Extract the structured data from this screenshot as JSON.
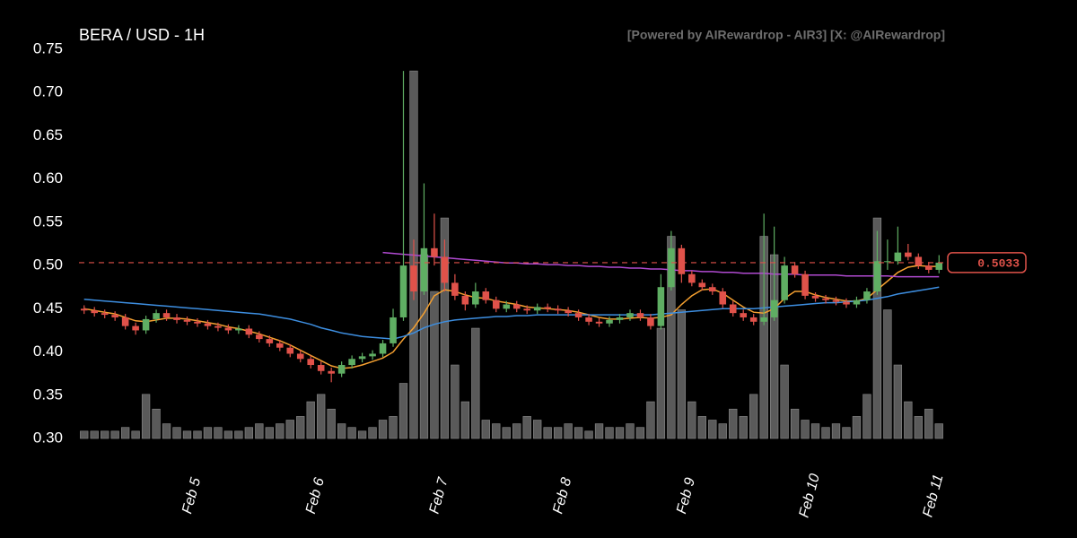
{
  "chart_data": {
    "type": "candlestick",
    "title": "BERA / USD - 1H",
    "subtitle": "[Powered by AIRewardrop - AIR3] [X: @AIRewardrop]",
    "categories": [
      null,
      null,
      null,
      null,
      null,
      null,
      null,
      null,
      null,
      null,
      null,
      "Feb 5",
      null,
      null,
      null,
      null,
      null,
      null,
      null,
      null,
      null,
      null,
      null,
      "Feb 6",
      null,
      null,
      null,
      null,
      null,
      null,
      null,
      null,
      null,
      null,
      null,
      "Feb 7",
      null,
      null,
      null,
      null,
      null,
      null,
      null,
      null,
      null,
      null,
      null,
      "Feb 8",
      null,
      null,
      null,
      null,
      null,
      null,
      null,
      null,
      null,
      null,
      null,
      "Feb 9",
      null,
      null,
      null,
      null,
      null,
      null,
      null,
      null,
      null,
      null,
      null,
      "Feb 10",
      null,
      null,
      null,
      null,
      null,
      null,
      null,
      null,
      null,
      null,
      null,
      "Feb 11"
    ],
    "ohlc": [
      [
        0.45,
        0.454,
        0.444,
        0.448
      ],
      [
        0.448,
        0.452,
        0.441,
        0.445
      ],
      [
        0.445,
        0.449,
        0.439,
        0.443
      ],
      [
        0.443,
        0.447,
        0.436,
        0.44
      ],
      [
        0.44,
        0.444,
        0.426,
        0.43
      ],
      [
        0.43,
        0.434,
        0.42,
        0.425
      ],
      [
        0.425,
        0.442,
        0.421,
        0.438
      ],
      [
        0.438,
        0.449,
        0.434,
        0.445
      ],
      [
        0.445,
        0.449,
        0.436,
        0.44
      ],
      [
        0.44,
        0.444,
        0.433,
        0.437
      ],
      [
        0.437,
        0.441,
        0.431,
        0.435
      ],
      [
        0.435,
        0.439,
        0.429,
        0.433
      ],
      [
        0.433,
        0.437,
        0.426,
        0.43
      ],
      [
        0.43,
        0.434,
        0.424,
        0.428
      ],
      [
        0.428,
        0.432,
        0.421,
        0.425
      ],
      [
        0.425,
        0.431,
        0.421,
        0.427
      ],
      [
        0.427,
        0.431,
        0.416,
        0.42
      ],
      [
        0.42,
        0.424,
        0.411,
        0.415
      ],
      [
        0.415,
        0.419,
        0.406,
        0.41
      ],
      [
        0.41,
        0.414,
        0.401,
        0.405
      ],
      [
        0.405,
        0.409,
        0.394,
        0.398
      ],
      [
        0.398,
        0.402,
        0.388,
        0.392
      ],
      [
        0.392,
        0.396,
        0.381,
        0.385
      ],
      [
        0.385,
        0.389,
        0.374,
        0.378
      ],
      [
        0.378,
        0.382,
        0.365,
        0.375
      ],
      [
        0.375,
        0.389,
        0.371,
        0.385
      ],
      [
        0.385,
        0.396,
        0.381,
        0.392
      ],
      [
        0.392,
        0.399,
        0.388,
        0.395
      ],
      [
        0.395,
        0.402,
        0.391,
        0.398
      ],
      [
        0.398,
        0.414,
        0.394,
        0.41
      ],
      [
        0.41,
        0.45,
        0.406,
        0.44
      ],
      [
        0.44,
        0.725,
        0.436,
        0.5
      ],
      [
        0.5,
        0.53,
        0.46,
        0.47
      ],
      [
        0.47,
        0.595,
        0.466,
        0.52
      ],
      [
        0.52,
        0.56,
        0.5,
        0.51
      ],
      [
        0.51,
        0.53,
        0.47,
        0.48
      ],
      [
        0.48,
        0.49,
        0.46,
        0.465
      ],
      [
        0.465,
        0.47,
        0.448,
        0.455
      ],
      [
        0.455,
        0.48,
        0.451,
        0.47
      ],
      [
        0.47,
        0.474,
        0.456,
        0.46
      ],
      [
        0.46,
        0.464,
        0.446,
        0.45
      ],
      [
        0.45,
        0.459,
        0.446,
        0.455
      ],
      [
        0.455,
        0.459,
        0.446,
        0.45
      ],
      [
        0.45,
        0.454,
        0.444,
        0.448
      ],
      [
        0.448,
        0.456,
        0.444,
        0.452
      ],
      [
        0.452,
        0.456,
        0.446,
        0.45
      ],
      [
        0.45,
        0.454,
        0.444,
        0.448
      ],
      [
        0.448,
        0.452,
        0.441,
        0.445
      ],
      [
        0.445,
        0.449,
        0.436,
        0.44
      ],
      [
        0.44,
        0.444,
        0.431,
        0.435
      ],
      [
        0.435,
        0.439,
        0.429,
        0.433
      ],
      [
        0.433,
        0.441,
        0.429,
        0.437
      ],
      [
        0.437,
        0.444,
        0.433,
        0.44
      ],
      [
        0.44,
        0.449,
        0.436,
        0.445
      ],
      [
        0.445,
        0.449,
        0.436,
        0.44
      ],
      [
        0.44,
        0.444,
        0.426,
        0.43
      ],
      [
        0.43,
        0.49,
        0.426,
        0.475
      ],
      [
        0.475,
        0.54,
        0.471,
        0.52
      ],
      [
        0.52,
        0.524,
        0.48,
        0.49
      ],
      [
        0.49,
        0.494,
        0.476,
        0.48
      ],
      [
        0.48,
        0.484,
        0.471,
        0.475
      ],
      [
        0.475,
        0.479,
        0.466,
        0.47
      ],
      [
        0.47,
        0.474,
        0.451,
        0.455
      ],
      [
        0.455,
        0.459,
        0.441,
        0.445
      ],
      [
        0.445,
        0.449,
        0.436,
        0.44
      ],
      [
        0.44,
        0.444,
        0.431,
        0.435
      ],
      [
        0.435,
        0.56,
        0.431,
        0.44
      ],
      [
        0.44,
        0.545,
        0.436,
        0.46
      ],
      [
        0.46,
        0.51,
        0.456,
        0.5
      ],
      [
        0.5,
        0.504,
        0.486,
        0.49
      ],
      [
        0.49,
        0.494,
        0.461,
        0.465
      ],
      [
        0.465,
        0.469,
        0.458,
        0.462
      ],
      [
        0.462,
        0.466,
        0.456,
        0.46
      ],
      [
        0.46,
        0.464,
        0.454,
        0.458
      ],
      [
        0.458,
        0.462,
        0.451,
        0.455
      ],
      [
        0.455,
        0.464,
        0.451,
        0.46
      ],
      [
        0.46,
        0.474,
        0.456,
        0.47
      ],
      [
        0.47,
        0.54,
        0.466,
        0.505
      ],
      [
        0.505,
        0.53,
        0.495,
        0.505
      ],
      [
        0.505,
        0.545,
        0.501,
        0.515
      ],
      [
        0.515,
        0.525,
        0.506,
        0.51
      ],
      [
        0.51,
        0.514,
        0.496,
        0.5
      ],
      [
        0.5,
        0.504,
        0.491,
        0.495
      ],
      [
        0.495,
        0.512,
        0.491,
        0.5033
      ]
    ],
    "volume": [
      2,
      2,
      2,
      2,
      3,
      2,
      12,
      8,
      4,
      3,
      2,
      2,
      3,
      3,
      2,
      2,
      3,
      4,
      3,
      4,
      5,
      6,
      10,
      12,
      8,
      4,
      3,
      2,
      3,
      5,
      6,
      15,
      100,
      50,
      40,
      60,
      20,
      10,
      30,
      5,
      4,
      3,
      4,
      6,
      5,
      3,
      3,
      4,
      3,
      2,
      4,
      3,
      3,
      4,
      3,
      10,
      30,
      55,
      35,
      10,
      6,
      5,
      4,
      8,
      6,
      12,
      55,
      50,
      20,
      8,
      5,
      4,
      3,
      4,
      3,
      6,
      12,
      60,
      35,
      20,
      10,
      6,
      8,
      4
    ],
    "lines": [
      {
        "color": "#f5a030",
        "values": [
          0.45,
          0.448,
          0.446,
          0.444,
          0.44,
          0.436,
          0.435,
          0.437,
          0.439,
          0.439,
          0.438,
          0.436,
          0.434,
          0.432,
          0.429,
          0.427,
          0.424,
          0.421,
          0.417,
          0.413,
          0.408,
          0.402,
          0.396,
          0.39,
          0.384,
          0.381,
          0.382,
          0.385,
          0.389,
          0.393,
          0.4,
          0.415,
          0.428,
          0.445,
          0.465,
          0.472,
          0.47,
          0.466,
          0.463,
          0.462,
          0.459,
          0.457,
          0.455,
          0.452,
          0.451,
          0.45,
          0.449,
          0.448,
          0.446,
          0.443,
          0.44,
          0.438,
          0.438,
          0.439,
          0.44,
          0.439,
          0.44,
          0.443,
          0.455,
          0.465,
          0.472,
          0.473,
          0.468,
          0.46,
          0.452,
          0.446,
          0.445,
          0.45,
          0.462,
          0.47,
          0.47,
          0.466,
          0.463,
          0.461,
          0.459,
          0.459,
          0.462,
          0.472,
          0.482,
          0.492,
          0.498,
          0.5,
          0.499,
          0.499
        ]
      },
      {
        "color": "#3d8ee0",
        "values": [
          0.461,
          0.46,
          0.459,
          0.458,
          0.457,
          0.456,
          0.455,
          0.454,
          0.453,
          0.452,
          0.451,
          0.45,
          0.449,
          0.448,
          0.447,
          0.446,
          0.445,
          0.444,
          0.442,
          0.44,
          0.438,
          0.435,
          0.432,
          0.428,
          0.425,
          0.422,
          0.42,
          0.418,
          0.417,
          0.416,
          0.415,
          0.418,
          0.422,
          0.428,
          0.432,
          0.435,
          0.437,
          0.438,
          0.439,
          0.44,
          0.441,
          0.441,
          0.442,
          0.442,
          0.443,
          0.443,
          0.443,
          0.443,
          0.443,
          0.443,
          0.443,
          0.443,
          0.443,
          0.443,
          0.443,
          0.443,
          0.444,
          0.445,
          0.446,
          0.447,
          0.448,
          0.449,
          0.45,
          0.45,
          0.45,
          0.45,
          0.451,
          0.452,
          0.453,
          0.454,
          0.455,
          0.456,
          0.457,
          0.457,
          0.458,
          0.459,
          0.46,
          0.462,
          0.464,
          0.467,
          0.469,
          0.471,
          0.473,
          0.475
        ]
      },
      {
        "color": "#b04ad0",
        "values": [
          null,
          null,
          null,
          null,
          null,
          null,
          null,
          null,
          null,
          null,
          null,
          null,
          null,
          null,
          null,
          null,
          null,
          null,
          null,
          null,
          null,
          null,
          null,
          null,
          null,
          null,
          null,
          null,
          null,
          0.515,
          0.514,
          0.513,
          0.512,
          0.511,
          0.51,
          0.509,
          0.508,
          0.507,
          0.506,
          0.505,
          0.504,
          0.503,
          0.503,
          0.502,
          0.502,
          0.501,
          0.501,
          0.5,
          0.5,
          0.499,
          0.499,
          0.498,
          0.498,
          0.497,
          0.497,
          0.496,
          0.496,
          0.495,
          0.494,
          0.494,
          0.493,
          0.493,
          0.492,
          0.492,
          0.491,
          0.491,
          0.491,
          0.49,
          0.49,
          0.49,
          0.489,
          0.489,
          0.489,
          0.489,
          0.488,
          0.488,
          0.488,
          0.488,
          0.488,
          0.487,
          0.487,
          0.487,
          0.487,
          0.487
        ]
      }
    ],
    "up_color": "#5fae63",
    "down_color": "#e0524a",
    "volume_color": "#5a5a5a",
    "price_line_color": "#e0524a",
    "ylim": [
      0.3,
      0.75
    ],
    "yticks": [
      {
        "value": 0.3,
        "label": "0.30"
      },
      {
        "value": 0.35,
        "label": "0.35"
      },
      {
        "value": 0.4,
        "label": "0.40"
      },
      {
        "value": 0.45,
        "label": "0.45"
      },
      {
        "value": 0.5,
        "label": "0.50"
      },
      {
        "value": 0.55,
        "label": "0.55"
      },
      {
        "value": 0.6,
        "label": "0.60"
      },
      {
        "value": 0.65,
        "label": "0.65"
      },
      {
        "value": 0.7,
        "label": "0.70"
      },
      {
        "value": 0.75,
        "label": "0.75"
      }
    ]
  }
}
